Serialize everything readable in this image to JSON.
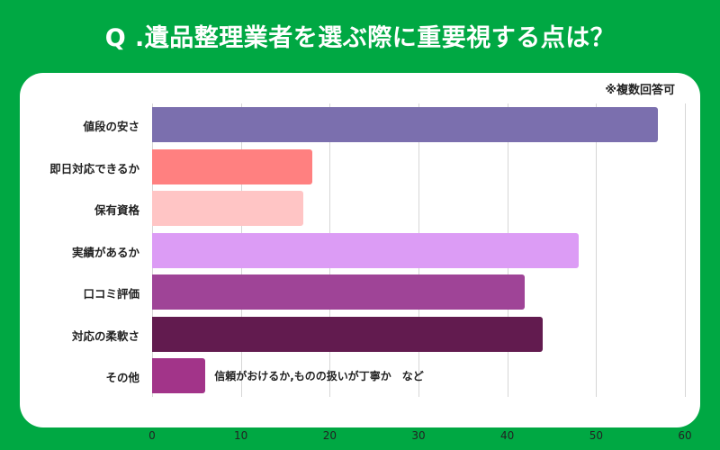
{
  "title": "Q .遺品整理業者を選ぶ際に重要視する点は？",
  "note": "※複数回答可",
  "colors": {
    "background": "#00a843",
    "card": "#ffffff",
    "grid": "#d6d6d6"
  },
  "chart_data": {
    "type": "bar",
    "orientation": "horizontal",
    "title": "Q .遺品整理業者を選ぶ際に重要視する点は？",
    "subtitle": "※複数回答可",
    "xlabel": "",
    "ylabel": "",
    "xlim": [
      0,
      60
    ],
    "xticks": [
      0,
      10,
      20,
      30,
      40,
      50,
      60
    ],
    "grid": true,
    "legend": null,
    "categories": [
      "値段の安さ",
      "即日対応できるか",
      "保有資格",
      "実績があるか",
      "口コミ評価",
      "対応の柔軟さ",
      "その他"
    ],
    "values": [
      57,
      18,
      17,
      48,
      42,
      44,
      6
    ],
    "bar_colors": [
      "#7b6fae",
      "#ff8080",
      "#ffc5c5",
      "#dc9cf5",
      "#9f4497",
      "#621b4f",
      "#a23489"
    ],
    "annotations": [
      {
        "category": "その他",
        "text": "信頼がおけるか,ものの扱いが丁寧か　など"
      }
    ]
  },
  "ticks": [
    "0",
    "10",
    "20",
    "30",
    "40",
    "50",
    "60"
  ],
  "annotation": "信頼がおけるか,ものの扱いが丁寧か　など"
}
